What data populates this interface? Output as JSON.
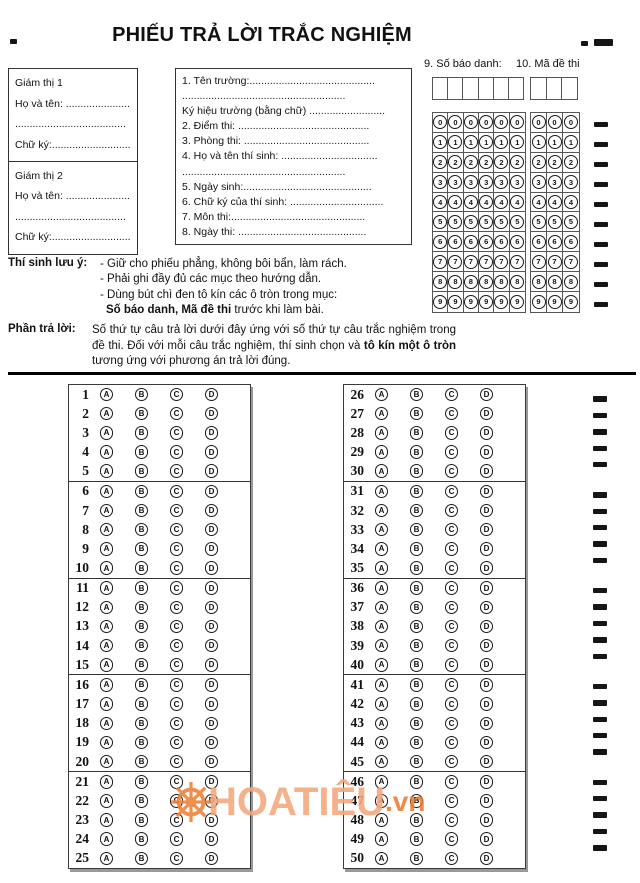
{
  "title": "PHIẾU TRẢ LỜI TRẮC NGHIỆM",
  "proctors": [
    {
      "heading": "Giám thị 1",
      "name_line": "Họ và tên: ..........................",
      "dots_line": "......................................",
      "sign_line": "Chữ ký:..............................."
    },
    {
      "heading": "Giám thị 2",
      "name_line": "Họ và tên: ..........................",
      "dots_line": "......................................",
      "sign_line": "Chữ ký:..............................."
    }
  ],
  "info_lines": [
    "1. Tên trường:...........................................",
    "    ........................................................",
    "  Ký hiệu trường (bằng chữ) ..........................",
    "2. Điểm thi: .............................................",
    "3. Phòng thi: ...........................................",
    "4. Họ và tên thí sinh: .................................",
    "    ........................................................",
    "5. Ngày sinh:............................................",
    "6. Chữ ký của thí sinh: ................................",
    "7. Môn thi:..............................................",
    "8. Ngày thi: ............................................"
  ],
  "sbd": {
    "label": "9. Số báo danh:",
    "num_cells": 6
  },
  "mdt": {
    "label": "10. Mã đề thi",
    "num_cells": 3
  },
  "digits": [
    "0",
    "1",
    "2",
    "3",
    "4",
    "5",
    "6",
    "7",
    "8",
    "9"
  ],
  "notes": {
    "label": "Thí sinh lưu ý:",
    "items": [
      "- Giữ cho phiếu phẳng, không bôi bẩn, làm rách.",
      "- Phải ghi đầy đủ các mục theo hướng dẫn.",
      "- Dùng bút chì đen tô kín các ô tròn trong mục:"
    ],
    "last_bold": "Số báo danh, Mã đề thi",
    "last_rest": " trước khi làm bài."
  },
  "answer_intro": {
    "label": "Phần trả lời:",
    "pre": "Số thứ tự câu trả lời dưới đây ứng với số thứ tự câu trắc nghiệm trong đề thi. Đối với mỗi câu trắc nghiệm, thí sinh chọn và ",
    "bold": "tô kín một ô tròn",
    "post": " tương ứng với phương án trả lời đúng."
  },
  "options": [
    "A",
    "B",
    "C",
    "D"
  ],
  "left_blocks": [
    [
      1,
      2,
      3,
      4,
      5
    ],
    [
      6,
      7,
      8,
      9,
      10
    ],
    [
      11,
      12,
      13,
      14,
      15
    ],
    [
      16,
      17,
      18,
      19,
      20
    ],
    [
      21,
      22,
      23,
      24,
      25
    ]
  ],
  "right_blocks": [
    [
      26,
      27,
      28,
      29,
      30
    ],
    [
      31,
      32,
      33,
      34,
      35
    ],
    [
      36,
      37,
      38,
      39,
      40
    ],
    [
      41,
      42,
      43,
      44,
      45
    ],
    [
      46,
      47,
      48,
      49,
      50
    ]
  ],
  "watermark": {
    "text": "HOATIÊU",
    "suffix": ".vn",
    "text_color": "#f4a77d",
    "suffix_color": "#ee7a2e",
    "wheel_color": "#ee7f36"
  }
}
